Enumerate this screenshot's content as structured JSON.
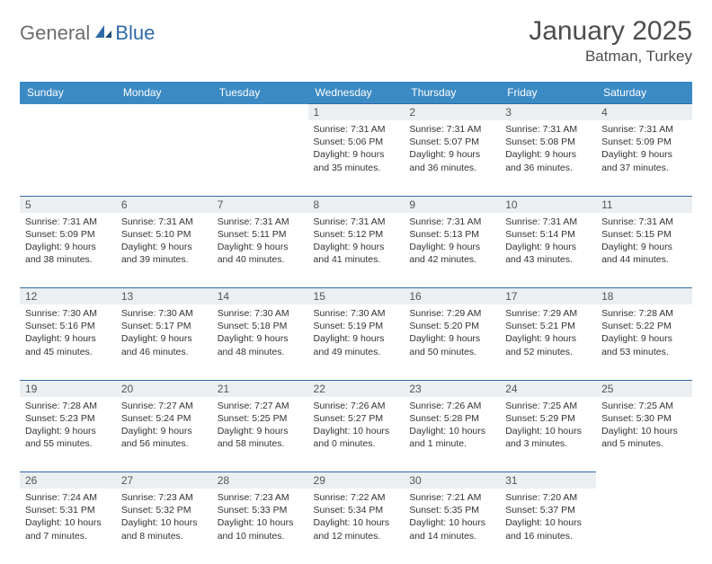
{
  "logo": {
    "general": "General",
    "blue": "Blue"
  },
  "title": "January 2025",
  "location": "Batman, Turkey",
  "colors": {
    "header_bg": "#3b8ac4",
    "header_text": "#ffffff",
    "daynum_bg": "#eceff1",
    "daynum_border": "#2f6aa8",
    "text": "#333333",
    "logo_gray": "#6c6c6c",
    "logo_blue": "#2f6aa8"
  },
  "weekdays": [
    "Sunday",
    "Monday",
    "Tuesday",
    "Wednesday",
    "Thursday",
    "Friday",
    "Saturday"
  ],
  "weeks": [
    [
      {
        "day": "",
        "sunrise": "",
        "sunset": "",
        "daylight": ""
      },
      {
        "day": "",
        "sunrise": "",
        "sunset": "",
        "daylight": ""
      },
      {
        "day": "",
        "sunrise": "",
        "sunset": "",
        "daylight": ""
      },
      {
        "day": "1",
        "sunrise": "Sunrise: 7:31 AM",
        "sunset": "Sunset: 5:06 PM",
        "daylight": "Daylight: 9 hours and 35 minutes."
      },
      {
        "day": "2",
        "sunrise": "Sunrise: 7:31 AM",
        "sunset": "Sunset: 5:07 PM",
        "daylight": "Daylight: 9 hours and 36 minutes."
      },
      {
        "day": "3",
        "sunrise": "Sunrise: 7:31 AM",
        "sunset": "Sunset: 5:08 PM",
        "daylight": "Daylight: 9 hours and 36 minutes."
      },
      {
        "day": "4",
        "sunrise": "Sunrise: 7:31 AM",
        "sunset": "Sunset: 5:09 PM",
        "daylight": "Daylight: 9 hours and 37 minutes."
      }
    ],
    [
      {
        "day": "5",
        "sunrise": "Sunrise: 7:31 AM",
        "sunset": "Sunset: 5:09 PM",
        "daylight": "Daylight: 9 hours and 38 minutes."
      },
      {
        "day": "6",
        "sunrise": "Sunrise: 7:31 AM",
        "sunset": "Sunset: 5:10 PM",
        "daylight": "Daylight: 9 hours and 39 minutes."
      },
      {
        "day": "7",
        "sunrise": "Sunrise: 7:31 AM",
        "sunset": "Sunset: 5:11 PM",
        "daylight": "Daylight: 9 hours and 40 minutes."
      },
      {
        "day": "8",
        "sunrise": "Sunrise: 7:31 AM",
        "sunset": "Sunset: 5:12 PM",
        "daylight": "Daylight: 9 hours and 41 minutes."
      },
      {
        "day": "9",
        "sunrise": "Sunrise: 7:31 AM",
        "sunset": "Sunset: 5:13 PM",
        "daylight": "Daylight: 9 hours and 42 minutes."
      },
      {
        "day": "10",
        "sunrise": "Sunrise: 7:31 AM",
        "sunset": "Sunset: 5:14 PM",
        "daylight": "Daylight: 9 hours and 43 minutes."
      },
      {
        "day": "11",
        "sunrise": "Sunrise: 7:31 AM",
        "sunset": "Sunset: 5:15 PM",
        "daylight": "Daylight: 9 hours and 44 minutes."
      }
    ],
    [
      {
        "day": "12",
        "sunrise": "Sunrise: 7:30 AM",
        "sunset": "Sunset: 5:16 PM",
        "daylight": "Daylight: 9 hours and 45 minutes."
      },
      {
        "day": "13",
        "sunrise": "Sunrise: 7:30 AM",
        "sunset": "Sunset: 5:17 PM",
        "daylight": "Daylight: 9 hours and 46 minutes."
      },
      {
        "day": "14",
        "sunrise": "Sunrise: 7:30 AM",
        "sunset": "Sunset: 5:18 PM",
        "daylight": "Daylight: 9 hours and 48 minutes."
      },
      {
        "day": "15",
        "sunrise": "Sunrise: 7:30 AM",
        "sunset": "Sunset: 5:19 PM",
        "daylight": "Daylight: 9 hours and 49 minutes."
      },
      {
        "day": "16",
        "sunrise": "Sunrise: 7:29 AM",
        "sunset": "Sunset: 5:20 PM",
        "daylight": "Daylight: 9 hours and 50 minutes."
      },
      {
        "day": "17",
        "sunrise": "Sunrise: 7:29 AM",
        "sunset": "Sunset: 5:21 PM",
        "daylight": "Daylight: 9 hours and 52 minutes."
      },
      {
        "day": "18",
        "sunrise": "Sunrise: 7:28 AM",
        "sunset": "Sunset: 5:22 PM",
        "daylight": "Daylight: 9 hours and 53 minutes."
      }
    ],
    [
      {
        "day": "19",
        "sunrise": "Sunrise: 7:28 AM",
        "sunset": "Sunset: 5:23 PM",
        "daylight": "Daylight: 9 hours and 55 minutes."
      },
      {
        "day": "20",
        "sunrise": "Sunrise: 7:27 AM",
        "sunset": "Sunset: 5:24 PM",
        "daylight": "Daylight: 9 hours and 56 minutes."
      },
      {
        "day": "21",
        "sunrise": "Sunrise: 7:27 AM",
        "sunset": "Sunset: 5:25 PM",
        "daylight": "Daylight: 9 hours and 58 minutes."
      },
      {
        "day": "22",
        "sunrise": "Sunrise: 7:26 AM",
        "sunset": "Sunset: 5:27 PM",
        "daylight": "Daylight: 10 hours and 0 minutes."
      },
      {
        "day": "23",
        "sunrise": "Sunrise: 7:26 AM",
        "sunset": "Sunset: 5:28 PM",
        "daylight": "Daylight: 10 hours and 1 minute."
      },
      {
        "day": "24",
        "sunrise": "Sunrise: 7:25 AM",
        "sunset": "Sunset: 5:29 PM",
        "daylight": "Daylight: 10 hours and 3 minutes."
      },
      {
        "day": "25",
        "sunrise": "Sunrise: 7:25 AM",
        "sunset": "Sunset: 5:30 PM",
        "daylight": "Daylight: 10 hours and 5 minutes."
      }
    ],
    [
      {
        "day": "26",
        "sunrise": "Sunrise: 7:24 AM",
        "sunset": "Sunset: 5:31 PM",
        "daylight": "Daylight: 10 hours and 7 minutes."
      },
      {
        "day": "27",
        "sunrise": "Sunrise: 7:23 AM",
        "sunset": "Sunset: 5:32 PM",
        "daylight": "Daylight: 10 hours and 8 minutes."
      },
      {
        "day": "28",
        "sunrise": "Sunrise: 7:23 AM",
        "sunset": "Sunset: 5:33 PM",
        "daylight": "Daylight: 10 hours and 10 minutes."
      },
      {
        "day": "29",
        "sunrise": "Sunrise: 7:22 AM",
        "sunset": "Sunset: 5:34 PM",
        "daylight": "Daylight: 10 hours and 12 minutes."
      },
      {
        "day": "30",
        "sunrise": "Sunrise: 7:21 AM",
        "sunset": "Sunset: 5:35 PM",
        "daylight": "Daylight: 10 hours and 14 minutes."
      },
      {
        "day": "31",
        "sunrise": "Sunrise: 7:20 AM",
        "sunset": "Sunset: 5:37 PM",
        "daylight": "Daylight: 10 hours and 16 minutes."
      },
      {
        "day": "",
        "sunrise": "",
        "sunset": "",
        "daylight": ""
      }
    ]
  ]
}
